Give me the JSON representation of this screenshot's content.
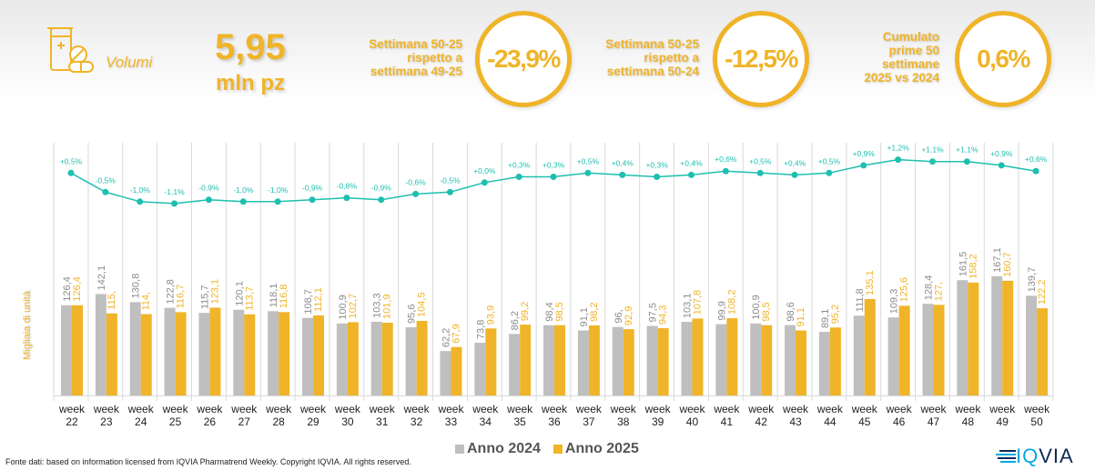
{
  "header": {
    "category_label": "Volumi",
    "category_icon": "pill-bottle-icon",
    "main_value": "5,95",
    "main_unit": "mln pz",
    "kpis": [
      {
        "description": [
          "Settimana 50-25",
          "rispetto a",
          "settimana 49-25"
        ],
        "value": "-23,9%"
      },
      {
        "description": [
          "Settimana 50-25",
          "rispetto a",
          "settimana 50-24"
        ],
        "value": "-12,5%"
      },
      {
        "description": [
          "Cumulato",
          "prime 50",
          "settimane",
          "2025 vs 2024"
        ],
        "value": "0,6%"
      }
    ]
  },
  "colors": {
    "accent": "#f0b429",
    "series_2024": "#bfbfbf",
    "series_2025": "#f0b429",
    "line": "#1dbfaf",
    "label_2024": "#8c8c8c"
  },
  "chart_data": {
    "type": "bar",
    "title": "",
    "xlabel": "",
    "ylabel": "Migliaia di unità",
    "categories": [
      "week 22",
      "week 23",
      "week 24",
      "week 25",
      "week 26",
      "week 27",
      "week 28",
      "week 29",
      "week 30",
      "week 31",
      "week 32",
      "week 33",
      "week 34",
      "week 35",
      "week 36",
      "week 37",
      "week 38",
      "week 39",
      "week 40",
      "week 41",
      "week 42",
      "week 43",
      "week 44",
      "week 45",
      "week 46",
      "week 47",
      "week 48",
      "week 49",
      "week 50"
    ],
    "series": [
      {
        "name": "Anno 2024",
        "values": [
          126.4,
          142.1,
          130.8,
          122.8,
          115.7,
          120.1,
          118.1,
          108.7,
          100.9,
          103.3,
          95.6,
          62.2,
          73.8,
          86.2,
          98.4,
          91.1,
          96.0,
          97.5,
          103.1,
          99.9,
          100.9,
          98.6,
          89.1,
          111.8,
          109.3,
          128.4,
          161.5,
          167.1,
          139.7
        ],
        "labels": [
          "126,4",
          "142,1",
          "130,8",
          "122,8",
          "115,7",
          "120,1",
          "118,1",
          "108,7",
          "100,9",
          "103,3",
          "95,6",
          "62,2",
          "73,8",
          "86,2",
          "98,4",
          "91,1",
          "96,",
          "97,5",
          "103,1",
          "99,9",
          "100,9",
          "98,6",
          "89,1",
          "111,8",
          "109,3",
          "128,4",
          "161,5",
          "167,1",
          "139,7"
        ]
      },
      {
        "name": "Anno 2025",
        "values": [
          126.4,
          115.0,
          114.0,
          116.7,
          123.1,
          113.7,
          116.8,
          112.1,
          102.7,
          101.9,
          104.5,
          67.9,
          93.9,
          99.2,
          98.5,
          98.2,
          92.9,
          94.3,
          107.8,
          108.2,
          98.5,
          91.1,
          95.2,
          135.1,
          125.6,
          127.0,
          158.2,
          160.7,
          122.2
        ],
        "labels": [
          "126,4",
          "115,",
          "114,",
          "116,7",
          "123,1",
          "113,7",
          "116,8",
          "112,1",
          "102,7",
          "101,9",
          "104,5",
          "67,9",
          "93,9",
          "99,2",
          "98,5",
          "98,2",
          "92,9",
          "94,3",
          "107,8",
          "108,2",
          "98,5",
          "91,1",
          "95,2",
          "135,1",
          "125,6",
          "127,",
          "158,2",
          "160,7",
          "122,2"
        ]
      }
    ],
    "line_series": {
      "name": "Cumulato variazione %",
      "type": "line",
      "values": [
        0.5,
        -0.5,
        -1.0,
        -1.1,
        -0.9,
        -1.0,
        -1.0,
        -0.9,
        -0.8,
        -0.9,
        -0.6,
        -0.5,
        0.0,
        0.3,
        0.3,
        0.5,
        0.4,
        0.3,
        0.4,
        0.6,
        0.5,
        0.4,
        0.5,
        0.9,
        1.2,
        1.1,
        1.1,
        0.9,
        0.6
      ],
      "labels": [
        "+0,5%",
        "-0,5%",
        "-1,0%",
        "-1,1%",
        "-0,9%",
        "-1,0%",
        "-1,0%",
        "-0,9%",
        "-0,8%",
        "-0,9%",
        "-0,6%",
        "-0,5%",
        "+0,0%",
        "+0,3%",
        "+0,3%",
        "+0,5%",
        "+0,4%",
        "+0,3%",
        "+0,4%",
        "+0,6%",
        "+0,5%",
        "+0,4%",
        "+0,5%",
        "+0,9%",
        "+1,2%",
        "+1,1%",
        "+1,1%",
        "+0,9%",
        "+0,6%"
      ]
    },
    "ylim": [
      0,
      180
    ],
    "grid": "vertical",
    "legend": "bottom-center"
  },
  "legend": [
    {
      "label": "Anno 2024",
      "color": "#bfbfbf"
    },
    {
      "label": "Anno 2025",
      "color": "#f0b429"
    }
  ],
  "footer": {
    "source_note": "Fonte dati: based on information licensed from IQVIA Pharmatrend Weekly. Copyright IQVIA. All rights reserved.",
    "logo_iq": "IQ",
    "logo_via": "VIA"
  }
}
